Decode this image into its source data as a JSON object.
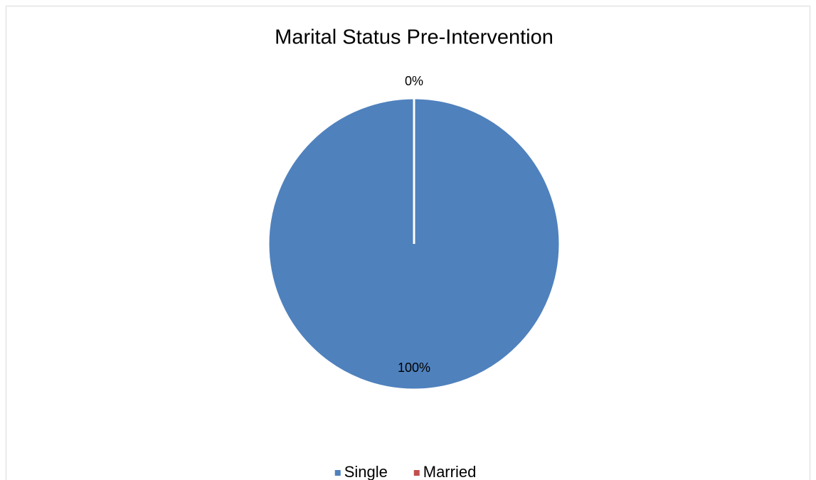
{
  "chart_data": {
    "type": "pie",
    "title": "Marital Status Pre-Intervention",
    "categories": [
      "Single",
      "Married"
    ],
    "values": [
      100,
      0
    ],
    "value_labels": [
      "100%",
      "0%"
    ],
    "colors": [
      "#4f81bd",
      "#c0504d"
    ],
    "legend": "bottom"
  }
}
